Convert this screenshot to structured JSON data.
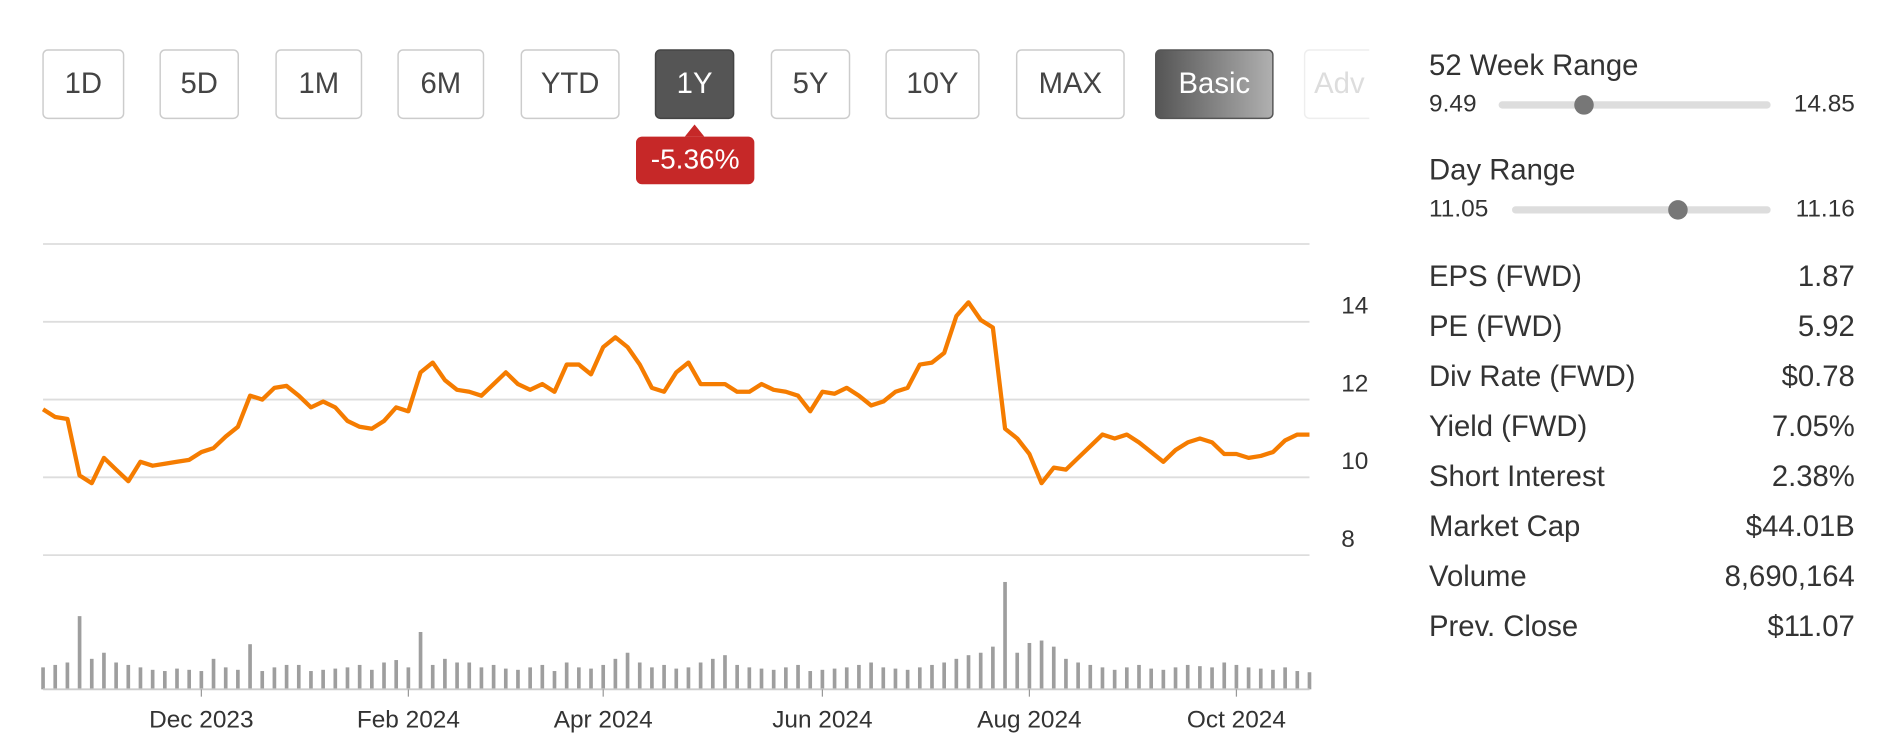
{
  "range_buttons": [
    {
      "label": "1D",
      "selected": false
    },
    {
      "label": "5D",
      "selected": false
    },
    {
      "label": "1M",
      "selected": false
    },
    {
      "label": "6M",
      "selected": false
    },
    {
      "label": "YTD",
      "selected": false
    },
    {
      "label": "1Y",
      "selected": true
    },
    {
      "label": "5Y",
      "selected": false
    },
    {
      "label": "10Y",
      "selected": false
    },
    {
      "label": "MAX",
      "selected": false
    }
  ],
  "view_buttons": [
    {
      "label": "Basic",
      "selected": true
    },
    {
      "label": "Adv",
      "selected": false
    }
  ],
  "change_badge": "-5.36%",
  "ranges": [
    {
      "label": "52 Week Range",
      "low": "9.49",
      "high": "14.85"
    },
    {
      "label": "Day Range",
      "low": "11.05",
      "high": "11.16"
    }
  ],
  "stats": [
    {
      "label": "EPS (FWD)",
      "value": "1.87"
    },
    {
      "label": "PE (FWD)",
      "value": "5.92"
    },
    {
      "label": "Div Rate (FWD)",
      "value": "$0.78"
    },
    {
      "label": "Yield (FWD)",
      "value": "7.05%"
    },
    {
      "label": "Short Interest",
      "value": "2.38%"
    },
    {
      "label": "Market Cap",
      "value": "$44.01B"
    },
    {
      "label": "Volume",
      "value": "8,690,164"
    },
    {
      "label": "Prev. Close",
      "value": "$11.07"
    }
  ],
  "chart_data": {
    "type": "line",
    "categories": [
      null,
      null,
      null,
      null,
      null,
      null,
      null,
      null,
      null,
      null,
      null,
      null,
      null,
      "Dec 2023",
      null,
      null,
      null,
      null,
      null,
      null,
      null,
      null,
      null,
      null,
      null,
      null,
      null,
      null,
      null,
      null,
      "Feb 2024",
      null,
      null,
      null,
      null,
      null,
      null,
      null,
      null,
      null,
      null,
      null,
      null,
      null,
      null,
      null,
      "Apr 2024",
      null,
      null,
      null,
      null,
      null,
      null,
      null,
      null,
      null,
      null,
      null,
      null,
      null,
      null,
      null,
      null,
      null,
      "Jun 2024",
      null,
      null,
      null,
      null,
      null,
      null,
      null,
      null,
      null,
      null,
      null,
      null,
      null,
      null,
      null,
      null,
      "Aug 2024",
      null,
      null,
      null,
      null,
      null,
      null,
      null,
      null,
      null,
      null,
      null,
      null,
      null,
      null,
      null,
      null,
      "Oct 2024",
      null,
      null,
      null,
      null,
      null,
      null
    ],
    "series": [
      {
        "color": "#f57c00",
        "values": [
          11.75,
          11.55,
          11.5,
          10.05,
          9.85,
          10.5,
          10.2,
          9.9,
          10.4,
          10.3,
          10.35,
          10.4,
          10.45,
          10.65,
          10.75,
          11.05,
          11.3,
          12.1,
          12.0,
          12.3,
          12.35,
          12.1,
          11.8,
          11.95,
          11.8,
          11.45,
          11.3,
          11.25,
          11.45,
          11.8,
          11.7,
          12.7,
          12.95,
          12.5,
          12.25,
          12.2,
          12.1,
          12.4,
          12.7,
          12.4,
          12.25,
          12.4,
          12.2,
          12.9,
          12.9,
          12.65,
          13.35,
          13.6,
          13.35,
          12.9,
          12.3,
          12.2,
          12.7,
          12.95,
          12.4,
          12.4,
          12.4,
          12.2,
          12.2,
          12.4,
          12.25,
          12.2,
          12.1,
          11.7,
          12.2,
          12.15,
          12.3,
          12.1,
          11.85,
          11.95,
          12.2,
          12.3,
          12.9,
          12.95,
          13.2,
          14.15,
          14.5,
          14.05,
          13.85,
          11.25,
          11.0,
          10.6,
          9.85,
          10.25,
          10.2,
          10.5,
          10.8,
          11.1,
          11.0,
          11.1,
          10.9,
          10.65,
          10.4,
          10.7,
          10.9,
          11.0,
          10.9,
          10.6,
          10.6,
          10.5,
          10.55,
          10.65,
          10.95,
          11.1,
          11.1
        ]
      }
    ],
    "volume": {
      "color": "#9e9e9e",
      "values": [
        18,
        20,
        22,
        60,
        25,
        30,
        22,
        20,
        18,
        16,
        15,
        17,
        16,
        15,
        25,
        18,
        16,
        37,
        15,
        18,
        20,
        20,
        15,
        16,
        17,
        18,
        20,
        16,
        22,
        24,
        18,
        47,
        20,
        25,
        22,
        22,
        18,
        20,
        17,
        16,
        18,
        20,
        15,
        22,
        18,
        17,
        20,
        25,
        30,
        22,
        18,
        20,
        17,
        18,
        22,
        25,
        28,
        20,
        18,
        17,
        16,
        18,
        20,
        15,
        16,
        17,
        18,
        20,
        22,
        18,
        17,
        16,
        18,
        20,
        22,
        25,
        28,
        30,
        35,
        88,
        30,
        38,
        40,
        35,
        25,
        22,
        20,
        18,
        16,
        18,
        20,
        17,
        16,
        18,
        20,
        19,
        18,
        22,
        20,
        18,
        17,
        16,
        18,
        15,
        14
      ]
    },
    "ylim": [
      8,
      16
    ],
    "yticks": [
      8,
      10,
      12,
      14
    ],
    "grid": true
  }
}
